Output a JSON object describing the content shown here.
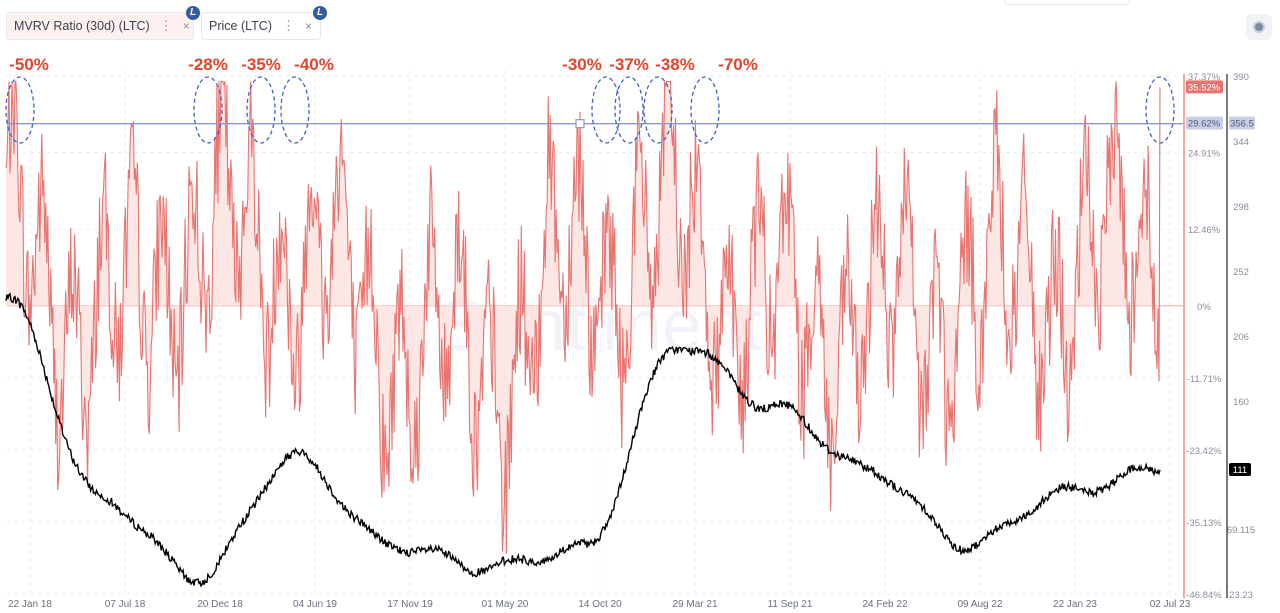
{
  "header": {
    "chips": [
      {
        "label": "MVRV Ratio (30d) (LTC)",
        "color": "#e8736f",
        "coin": "L"
      },
      {
        "label": "Price (LTC)",
        "color": "#000000",
        "coin": "L"
      }
    ],
    "menu_glyph": "⋮",
    "close_glyph": "×",
    "settings_icon": "settings-icon"
  },
  "chart_data": {
    "type": "line",
    "watermark": "Santiment",
    "x_ticks": [
      "22 Jan 18",
      "07 Jul 18",
      "20 Dec 18",
      "04 Jun 19",
      "17 Nov 19",
      "01 May 20",
      "14 Oct 20",
      "29 Mar 21",
      "11 Sep 21",
      "24 Feb 22",
      "09 Aug 22",
      "22 Jan 23",
      "02 Jul 23"
    ],
    "left_axis": {
      "name": "MVRV Ratio (30d) (LTC)",
      "unit": "%",
      "ticks": [
        "37.37%",
        "24.91%",
        "12.46%",
        "0%",
        "-11.71%",
        "-23.42%",
        "-35.13%",
        "-46.84%"
      ],
      "current_label": "35.52%",
      "ref_label": "29.62%",
      "ylim": [
        -46.84,
        37.37
      ]
    },
    "right_axis": {
      "name": "Price (LTC)",
      "ticks": [
        "390",
        "344",
        "298",
        "252",
        "206",
        "160",
        "111",
        "69.115",
        "23.23"
      ],
      "current_label": "111",
      "ref_label": "356.5",
      "ylim": [
        23.23,
        390
      ]
    },
    "annotations": [
      "-50%",
      "-28%",
      "-35%",
      "-40%",
      "-30%",
      "-37%",
      "-38%",
      "-70%"
    ],
    "series": [
      {
        "name": "MVRV Ratio (30d) (LTC)",
        "color": "#e8736f",
        "x": [
          "22 Jan 18",
          "07 Jul 18",
          "20 Dec 18",
          "04 Jun 19",
          "17 Nov 19",
          "01 May 20",
          "14 Oct 20",
          "29 Mar 21",
          "11 Sep 21",
          "24 Feb 22",
          "09 Aug 22",
          "22 Jan 23",
          "02 Jul 23"
        ],
        "values": [
          33.0,
          -10.0,
          32.0,
          27.0,
          -12.0,
          -28.0,
          20.0,
          35.0,
          -5.0,
          -8.0,
          3.0,
          13.0,
          35.52
        ]
      },
      {
        "name": "Price (LTC)",
        "color": "#000000",
        "x": [
          "22 Jan 18",
          "07 Jul 18",
          "20 Dec 18",
          "04 Jun 19",
          "17 Nov 19",
          "01 May 20",
          "14 Oct 20",
          "29 Mar 21",
          "11 Sep 21",
          "24 Feb 22",
          "09 Aug 22",
          "22 Jan 23",
          "02 Jul 23"
        ],
        "values": [
          232,
          90,
          35,
          120,
          58,
          42,
          55,
          200,
          155,
          110,
          58,
          95,
          111
        ]
      }
    ],
    "reference_line": {
      "mvrv": 29.62,
      "price": 356.5
    },
    "colors": {
      "mvrv_line": "#e8736f",
      "mvrv_fill": "#fde3e1",
      "price_line": "#000000",
      "annotation": "#e0452e",
      "circle": "#3d63c9",
      "ref_line": "#8c96c8"
    }
  }
}
